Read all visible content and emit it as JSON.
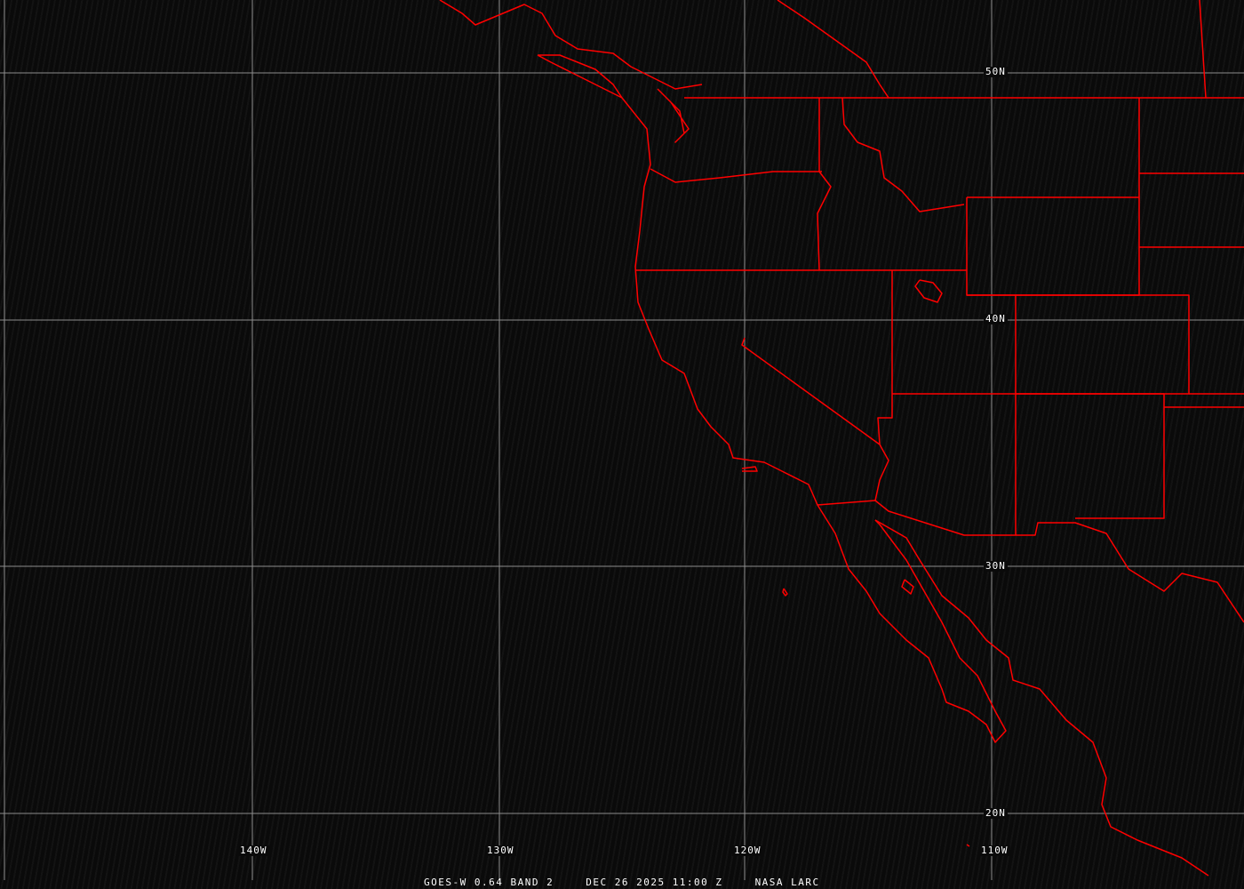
{
  "map": {
    "colors": {
      "grid": "#8c8c8c",
      "boundaries": "#ff0000",
      "background": "#0a0a0a",
      "text": "#ffffff"
    },
    "latitude_labels": [
      "50N",
      "40N",
      "30N",
      "20N"
    ],
    "longitude_labels": [
      "140W",
      "130W",
      "120W",
      "110W"
    ]
  },
  "caption": {
    "product": "GOES-W 0.64 BAND 2",
    "datetime": "DEC 26 2025 11:00 Z",
    "source": "NASA LARC"
  }
}
